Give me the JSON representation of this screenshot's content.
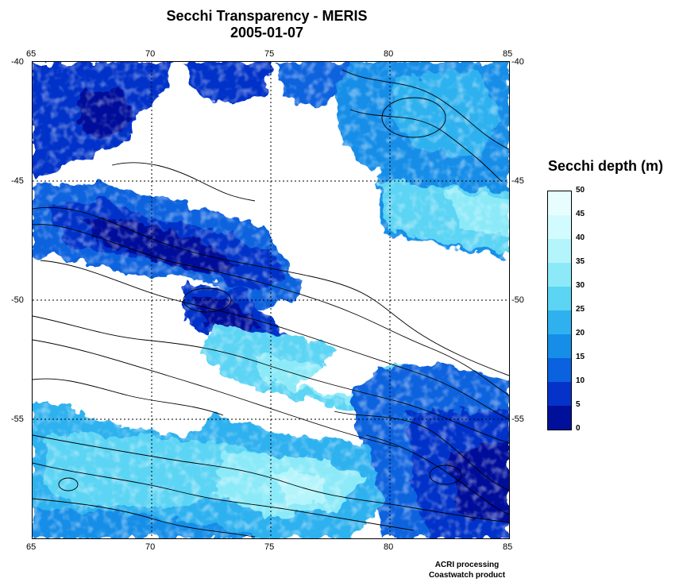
{
  "title": "Secchi Transparency - MERIS",
  "date": "2005-01-07",
  "map": {
    "lon_ticks": [
      "65",
      "70",
      "75",
      "80",
      "85"
    ],
    "lat_ticks": [
      "-40",
      "-45",
      "-50",
      "-55"
    ]
  },
  "legend": {
    "title": "Secchi depth (m)",
    "labels": [
      "50",
      "45",
      "40",
      "35",
      "30",
      "25",
      "20",
      "15",
      "10",
      "5",
      "0"
    ],
    "colors": [
      "#e8fefe",
      "#d2fbff",
      "#b4f4fb",
      "#8ceaf8",
      "#5cd4f4",
      "#2fb1ef",
      "#168ee8",
      "#0a62de",
      "#0533c9",
      "#00109a"
    ]
  },
  "credit": {
    "line1": "ACRI processing",
    "line2": "Coastwatch product"
  }
}
